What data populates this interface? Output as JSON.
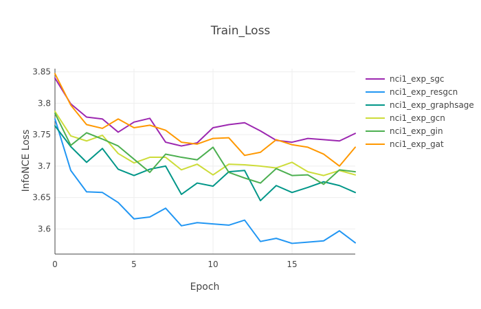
{
  "chart_data": {
    "type": "line",
    "title": "Train_Loss",
    "xlabel": "Epoch",
    "ylabel": "InfoNCE Loss",
    "xlim": [
      0,
      19
    ],
    "ylim": [
      3.56,
      3.855
    ],
    "x_ticks": [
      0,
      5,
      10,
      15
    ],
    "y_ticks": [
      3.6,
      3.65,
      3.7,
      3.75,
      3.8,
      3.85
    ],
    "y_tick_labels": [
      "3.6",
      "3.65",
      "3.7",
      "3.75",
      "3.8",
      "3.85"
    ],
    "grid": true,
    "legend_position": "right",
    "x": [
      0,
      1,
      2,
      3,
      4,
      5,
      6,
      7,
      8,
      9,
      10,
      11,
      12,
      13,
      14,
      15,
      16,
      17,
      18,
      19
    ],
    "series": [
      {
        "name": "nci1_exp_sgc",
        "color": "#9c27b0",
        "values": [
          3.84,
          3.799,
          3.778,
          3.775,
          3.754,
          3.77,
          3.776,
          3.738,
          3.732,
          3.737,
          3.761,
          3.766,
          3.769,
          3.756,
          3.741,
          3.738,
          3.744,
          3.742,
          3.74,
          3.752
        ]
      },
      {
        "name": "nci1_exp_resgcn",
        "color": "#2196f3",
        "values": [
          3.775,
          3.693,
          3.659,
          3.658,
          3.642,
          3.616,
          3.619,
          3.633,
          3.605,
          3.61,
          3.608,
          3.606,
          3.614,
          3.58,
          3.585,
          3.577,
          3.579,
          3.581,
          3.597,
          3.578
        ]
      },
      {
        "name": "nci1_exp_graphsage",
        "color": "#009688",
        "values": [
          3.764,
          3.731,
          3.706,
          3.728,
          3.695,
          3.685,
          3.695,
          3.7,
          3.655,
          3.673,
          3.668,
          3.691,
          3.693,
          3.645,
          3.669,
          3.658,
          3.666,
          3.675,
          3.669,
          3.658
        ]
      },
      {
        "name": "nci1_exp_gcn",
        "color": "#cddc39",
        "values": [
          3.787,
          3.748,
          3.74,
          3.749,
          3.72,
          3.705,
          3.714,
          3.714,
          3.694,
          3.703,
          3.686,
          3.703,
          3.702,
          3.7,
          3.697,
          3.706,
          3.691,
          3.685,
          3.693,
          3.686
        ]
      },
      {
        "name": "nci1_exp_gin",
        "color": "#4caf50",
        "values": [
          3.784,
          3.733,
          3.753,
          3.743,
          3.732,
          3.711,
          3.69,
          3.719,
          3.714,
          3.71,
          3.73,
          3.69,
          3.681,
          3.673,
          3.696,
          3.685,
          3.686,
          3.671,
          3.694,
          3.691
        ]
      },
      {
        "name": "nci1_exp_gat",
        "color": "#ff9800",
        "values": [
          3.847,
          3.797,
          3.766,
          3.76,
          3.775,
          3.761,
          3.765,
          3.757,
          3.738,
          3.735,
          3.744,
          3.745,
          3.717,
          3.722,
          3.742,
          3.734,
          3.73,
          3.719,
          3.7,
          3.73
        ]
      }
    ]
  }
}
